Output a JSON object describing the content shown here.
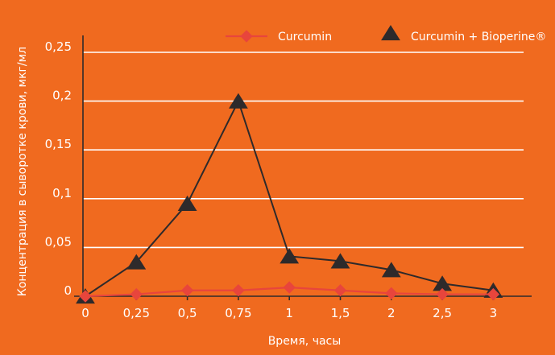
{
  "chart_data": {
    "type": "line",
    "x_categories": [
      "0",
      "0,25",
      "0,5",
      "0,75",
      "1",
      "1,5",
      "2",
      "2,5",
      "3"
    ],
    "y_ticks": [
      "0",
      "0,05",
      "0,1",
      "0,15",
      "0,2",
      "0,25"
    ],
    "y_tick_values": [
      0,
      0.05,
      0.1,
      0.15,
      0.2,
      0.25
    ],
    "ylim": [
      0,
      0.25
    ],
    "xlabel": "Время, часы",
    "ylabel": "Концентрация в сыворотке крови, мкг/мл",
    "grid": true,
    "legend_position": "top-right",
    "series": [
      {
        "name": "Curcumin",
        "color": "#E8453C",
        "marker": "diamond",
        "values": [
          0,
          0.002,
          0.006,
          0.006,
          0.009,
          0.006,
          0.003,
          0.002,
          0.002
        ]
      },
      {
        "name": "Curcumin + Bioperine®",
        "color": "#2E2A2B",
        "marker": "triangle",
        "values": [
          0,
          0.035,
          0.095,
          0.2,
          0.041,
          0.036,
          0.027,
          0.013,
          0.006
        ]
      }
    ]
  },
  "colors": {
    "background": "#F06A1F",
    "axis": "#2E2A2B",
    "grid": "#ffffff"
  }
}
